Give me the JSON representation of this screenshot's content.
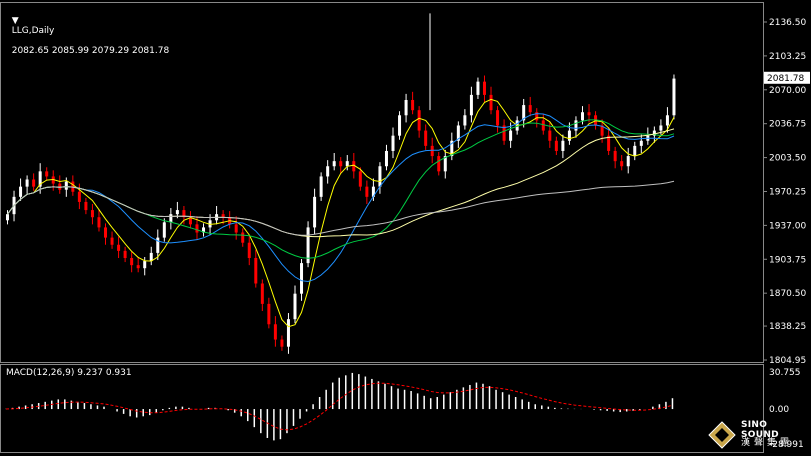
{
  "header": {
    "symbol_label": "LLG,Daily",
    "ohlc": "2082.65 2085.99 2079.29 2081.78"
  },
  "price_scale": {
    "labels": [
      "2136.50",
      "2103.25",
      "2070.00",
      "2036.75",
      "2003.50",
      "1970.25",
      "1937.00",
      "1903.75",
      "1870.50",
      "1838.25",
      "1804.95"
    ],
    "current_price_label": "2081.78"
  },
  "macd": {
    "title": "MACD(12,26,9) 9.237 0.931",
    "labels": [
      "30.755",
      "0.00",
      "-28.991"
    ]
  },
  "colors": {
    "background": "#000000",
    "bull": "#ffffff",
    "bear": "#ff0000",
    "ma_fast": "#ffff00",
    "ma_mid": "#1e90ff",
    "ma_slow": "#00cc44",
    "ma_long": "#ffffaa",
    "ma_longest": "#c0c0c0",
    "signal": "#ff0000"
  },
  "logo": {
    "line1": "SINO SOUND",
    "line2": "漢聲集團"
  },
  "chart_data": {
    "type": "candlestick",
    "title": "LLG,Daily",
    "ylim": [
      1804.95,
      2136.5
    ],
    "series_close": [
      1948,
      1965,
      1975,
      1982,
      1975,
      1990,
      1985,
      1978,
      1972,
      1980,
      1970,
      1960,
      1952,
      1945,
      1935,
      1925,
      1918,
      1912,
      1905,
      1898,
      1895,
      1902,
      1910,
      1925,
      1940,
      1948,
      1952,
      1945,
      1938,
      1930,
      1935,
      1942,
      1948,
      1945,
      1938,
      1930,
      1920,
      1905,
      1880,
      1860,
      1840,
      1825,
      1818,
      1845,
      1870,
      1900,
      1935,
      1965,
      1985,
      1995,
      2000,
      1995,
      2000,
      1990,
      1975,
      1965,
      1975,
      1995,
      2010,
      2025,
      2045,
      2060,
      2050,
      2030,
      2015,
      2005,
      1990,
      2005,
      2020,
      2035,
      2045,
      2065,
      2078,
      2065,
      2050,
      2035,
      2020,
      2030,
      2040,
      2055,
      2048,
      2040,
      2030,
      2020,
      2010,
      2020,
      2030,
      2040,
      2048,
      2045,
      2035,
      2025,
      2010,
      2000,
      1995,
      2005,
      2015,
      2020,
      2025,
      2030,
      2035,
      2045,
      2081
    ],
    "macd_hist": [
      0.2,
      1,
      2,
      3,
      4,
      5,
      6,
      7,
      8,
      8,
      7,
      6,
      5,
      4,
      3,
      2,
      0,
      -2,
      -4,
      -6,
      -7,
      -6,
      -5,
      -3,
      -1,
      1,
      2,
      2,
      1,
      0,
      0,
      1,
      1,
      0,
      -1,
      -3,
      -6,
      -10,
      -15,
      -20,
      -24,
      -26,
      -25,
      -20,
      -14,
      -8,
      -2,
      4,
      10,
      16,
      22,
      26,
      28,
      30,
      29,
      27,
      25,
      23,
      21,
      19,
      17,
      16,
      15,
      13,
      11,
      9,
      10,
      12,
      14,
      16,
      18,
      20,
      22,
      21,
      19,
      16,
      14,
      12,
      10,
      8,
      6,
      4,
      3,
      2,
      1,
      0.5,
      0.3,
      0.2,
      0.1,
      0,
      -0.5,
      -1,
      -1.5,
      -2,
      -2.5,
      -2,
      -1.5,
      -1,
      0,
      2,
      4,
      6,
      9
    ]
  }
}
